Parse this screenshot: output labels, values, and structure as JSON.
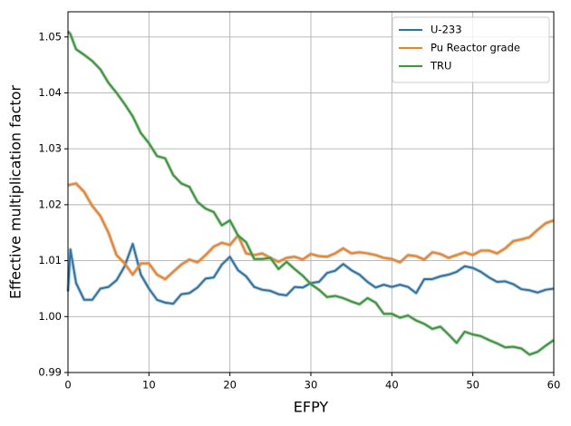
{
  "chart_data": {
    "type": "line",
    "x_label": "EFPY",
    "y_label": "Effective multiplication factor",
    "x": [
      0,
      0.3,
      1,
      2,
      3,
      4,
      5,
      6,
      7,
      8,
      9,
      10,
      11,
      12,
      13,
      14,
      15,
      16,
      17,
      18,
      19,
      20,
      21,
      22,
      23,
      24,
      25,
      26,
      27,
      28,
      29,
      30,
      31,
      32,
      33,
      34,
      35,
      36,
      37,
      38,
      39,
      40,
      41,
      42,
      43,
      44,
      45,
      46,
      47,
      48,
      49,
      50,
      51,
      52,
      53,
      54,
      55,
      56,
      57,
      58,
      59,
      60
    ],
    "series": [
      {
        "name": "U-233",
        "color": "#1f77b4",
        "values": [
          1.0045,
          1.012,
          1.006,
          1.003,
          1.003,
          1.005,
          1.0053,
          1.0065,
          1.009,
          1.013,
          1.0075,
          1.005,
          1.003,
          1.0025,
          1.0023,
          1.004,
          1.0042,
          1.0052,
          1.0068,
          1.007,
          1.0093,
          1.0107,
          1.0083,
          1.0072,
          1.0053,
          1.0048,
          1.0046,
          1.004,
          1.0038,
          1.0053,
          1.0052,
          1.006,
          1.0062,
          1.0078,
          1.0082,
          1.0094,
          1.0083,
          1.0075,
          1.0062,
          1.0052,
          1.0057,
          1.0053,
          1.0057,
          1.0053,
          1.0042,
          1.0067,
          1.0067,
          1.0072,
          1.0075,
          1.008,
          1.009,
          1.0087,
          1.008,
          1.007,
          1.0062,
          1.0063,
          1.0058,
          1.0049,
          1.0047,
          1.0043,
          1.0048,
          1.005
        ]
      },
      {
        "name": "Pu Reactor grade",
        "color": "#ff7f0e",
        "values": [
          1.0235,
          1.0236,
          1.0238,
          1.0223,
          1.0198,
          1.018,
          1.015,
          1.011,
          1.0095,
          1.0075,
          1.0095,
          1.0095,
          1.0075,
          1.0067,
          1.008,
          1.0093,
          1.0102,
          1.0097,
          1.011,
          1.0125,
          1.0132,
          1.0128,
          1.0145,
          1.0113,
          1.011,
          1.0113,
          1.0105,
          1.0098,
          1.0105,
          1.0107,
          1.0102,
          1.0112,
          1.0108,
          1.0107,
          1.0113,
          1.0122,
          1.0113,
          1.0115,
          1.0113,
          1.011,
          1.0105,
          1.0103,
          1.0097,
          1.011,
          1.0108,
          1.0102,
          1.0115,
          1.0112,
          1.0105,
          1.011,
          1.0115,
          1.011,
          1.0118,
          1.0118,
          1.0113,
          1.0122,
          1.0135,
          1.0138,
          1.0142,
          1.0155,
          1.0167,
          1.0172
        ]
      },
      {
        "name": "TRU",
        "color": "#2ca02c",
        "values": [
          1.051,
          1.0505,
          1.0478,
          1.0468,
          1.0457,
          1.0442,
          1.0418,
          1.04,
          1.038,
          1.0358,
          1.0328,
          1.031,
          1.0287,
          1.0283,
          1.0253,
          1.0238,
          1.0232,
          1.0205,
          1.0193,
          1.0187,
          1.0163,
          1.0172,
          1.0145,
          1.0133,
          1.0103,
          1.0103,
          1.0105,
          1.0085,
          1.0098,
          1.0085,
          1.0073,
          1.0058,
          1.0048,
          1.0035,
          1.0037,
          1.0033,
          1.0027,
          1.0022,
          1.0033,
          1.0025,
          1.0005,
          1.0005,
          0.9998,
          1.0002,
          0.9993,
          0.9987,
          0.9978,
          0.9982,
          0.9968,
          0.9953,
          0.9973,
          0.9968,
          0.9965,
          0.9958,
          0.9952,
          0.9945,
          0.9946,
          0.9943,
          0.9932,
          0.9937,
          0.9948,
          0.9958
        ]
      }
    ],
    "xlim": [
      0,
      60
    ],
    "xticks": [
      0,
      10,
      20,
      30,
      40,
      50,
      60
    ],
    "ylim": [
      0.99,
      1.0545
    ],
    "yticks": [
      0.99,
      {
        "value": 1,
        "label": "1.00"
      },
      1.01,
      1.02,
      1.03,
      1.04,
      1.05
    ],
    "grid": true,
    "legend": "upper-right"
  }
}
